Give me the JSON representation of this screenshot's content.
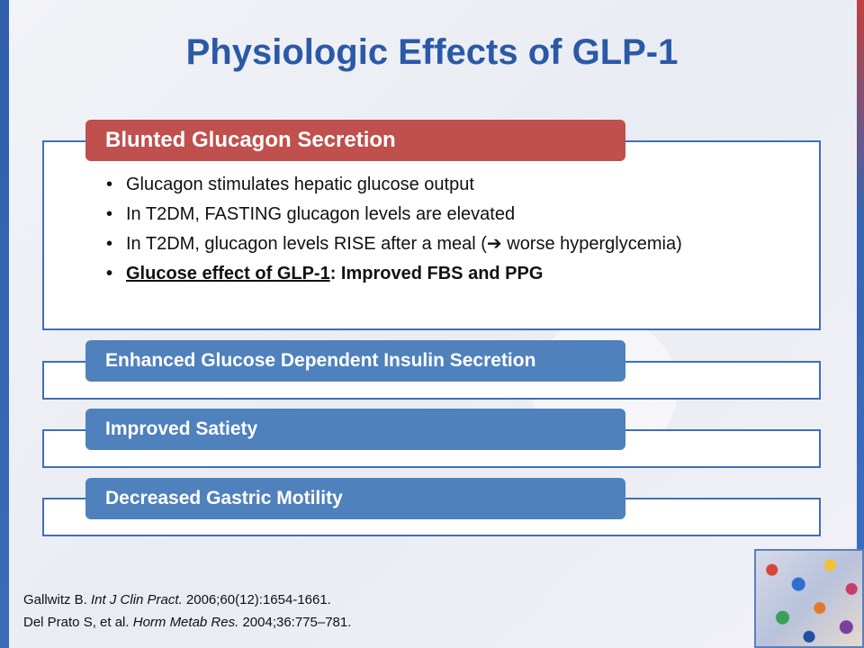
{
  "slide": {
    "title": "Physiologic Effects of GLP-1",
    "sections": [
      {
        "label": "Blunted Glucagon Secretion",
        "color": "#c0504d",
        "bullets": [
          "Glucagon stimulates hepatic glucose output",
          "In T2DM, FASTING glucagon levels are elevated",
          "In T2DM, glucagon levels RISE after a meal (",
          " worse hyperglycemia)"
        ],
        "key_point": {
          "underlined": "Glucose effect of GLP-1",
          "rest": ": Improved FBS and PPG"
        }
      },
      {
        "label": "Enhanced Glucose Dependent Insulin Secretion",
        "color": "#4f81bd"
      },
      {
        "label": "Improved Satiety",
        "color": "#4f81bd"
      },
      {
        "label": "Decreased Gastric Motility",
        "color": "#4f81bd"
      }
    ],
    "arrow_icon": "right-arrow-icon",
    "references": [
      {
        "author": "Gallwitz B. ",
        "journal": "Int J Clin Pract.",
        "citation": " 2006;60(12):1654-1661."
      },
      {
        "author": "Del Prato S, et al. ",
        "journal": "Horm Metab Res.",
        "citation": " 2004;36:775–781."
      }
    ]
  }
}
